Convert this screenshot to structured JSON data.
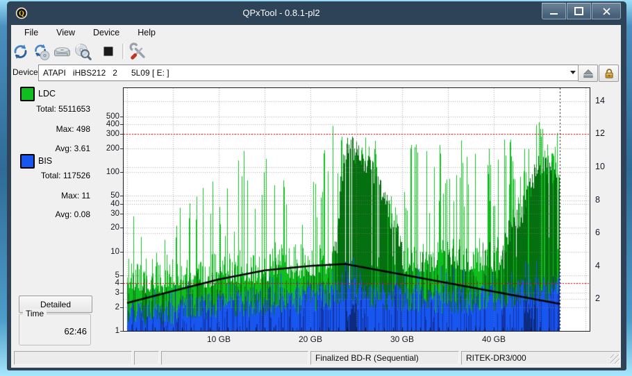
{
  "window": {
    "title": "QPxTool - 0.8.1-pl2",
    "controls": {
      "minimize": "minimize",
      "maximize": "maximize",
      "close": "✕"
    }
  },
  "menu": {
    "items": [
      "File",
      "View",
      "Device",
      "Help"
    ]
  },
  "toolbar": {
    "icons": [
      "refresh",
      "rescan-disc",
      "drive",
      "scan-disc",
      "stop",
      "tools"
    ]
  },
  "device_bar": {
    "label": "Device:",
    "value": "ATAPI   iHBS212   2      5L09 [ E: ]"
  },
  "legend": {
    "ldc": {
      "name": "LDC",
      "color": "#0fbe1f",
      "stats": [
        {
          "label": "Total:",
          "value": "5511653"
        },
        {
          "label": "Max:",
          "value": "498"
        },
        {
          "label": "Avg:",
          "value": "3.61"
        }
      ]
    },
    "bis": {
      "name": "BIS",
      "color": "#1757f0",
      "stats": [
        {
          "label": "Total:",
          "value": "117526"
        },
        {
          "label": "Max:",
          "value": "11"
        },
        {
          "label": "Avg:",
          "value": "0.08"
        }
      ]
    }
  },
  "detailed_button": "Detailed",
  "time_box": {
    "title": "Time",
    "value": "62:46"
  },
  "status_bar": {
    "panels": [
      "",
      "",
      "",
      "Finalized BD-R (Sequential)",
      "RITEK-DR3/000"
    ]
  },
  "chart_data": {
    "type": "bar",
    "x_axis": {
      "unit": "GB",
      "ticks": [
        10,
        20,
        30,
        40
      ],
      "grid_step_gb": 5,
      "minor_tick_gb": 1,
      "range": [
        0,
        50.5
      ],
      "data_end": 47.2
    },
    "y_axis_left": {
      "scale": "log",
      "range": [
        1,
        1150
      ],
      "ticks": [
        1,
        2,
        3,
        4,
        5,
        10,
        20,
        30,
        40,
        50,
        100,
        200,
        300,
        400,
        500
      ],
      "thresholds": [
        300,
        4
      ],
      "threshold_color": "#d40000"
    },
    "y_axis_right": {
      "scale": "linear",
      "range": [
        0,
        14.8
      ],
      "ticks": [
        2,
        4,
        6,
        8,
        10,
        12,
        14
      ],
      "grid_ticks": [
        14,
        10,
        8,
        6,
        2
      ]
    },
    "series": [
      {
        "name": "LDC",
        "color": "#0fbe1f",
        "dark_color": "#05700f",
        "total": 5511653,
        "max": 498,
        "avg": 3.61,
        "typical": [
          6,
          6,
          6,
          6,
          6,
          7,
          7,
          7,
          7,
          7,
          8,
          8,
          8,
          8,
          8,
          8,
          9,
          9,
          9,
          9,
          9,
          10,
          10,
          14,
          16,
          14,
          13,
          12,
          12,
          12,
          11,
          11,
          11,
          11,
          11,
          11,
          11,
          11,
          11,
          11,
          11,
          12,
          14,
          16,
          20,
          22,
          22,
          20
        ],
        "peak": [
          95,
          60,
          55,
          65,
          55,
          75,
          60,
          85,
          250,
          130,
          110,
          85,
          130,
          240,
          110,
          160,
          110,
          310,
          160,
          130,
          210,
          160,
          300,
          500,
          450,
          400,
          320,
          260,
          230,
          190,
          160,
          230,
          310,
          190,
          260,
          170,
          310,
          210,
          260,
          310,
          240,
          310,
          260,
          320,
          420,
          500,
          460,
          400
        ],
        "dark": [
          4,
          4,
          4,
          4,
          4,
          4,
          4,
          4,
          5,
          5,
          5,
          5,
          5,
          5,
          5,
          5,
          6,
          6,
          6,
          6,
          6,
          7,
          8,
          20,
          280,
          240,
          170,
          120,
          60,
          30,
          14,
          12,
          12,
          10,
          10,
          10,
          10,
          10,
          10,
          10,
          12,
          14,
          30,
          40,
          90,
          160,
          140,
          100
        ],
        "spike_density": [
          0.12,
          0.12,
          0.12,
          0.12,
          0.12,
          0.12,
          0.12,
          0.12,
          0.15,
          0.15,
          0.15,
          0.15,
          0.15,
          0.15,
          0.15,
          0.15,
          0.15,
          0.15,
          0.15,
          0.15,
          0.18,
          0.18,
          0.2,
          0.3,
          0.3,
          0.3,
          0.3,
          0.28,
          0.26,
          0.24,
          0.25,
          0.25,
          0.25,
          0.25,
          0.25,
          0.25,
          0.25,
          0.25,
          0.25,
          0.25,
          0.3,
          0.35,
          0.4,
          0.45,
          0.5,
          0.55,
          0.55,
          0.5
        ]
      },
      {
        "name": "BIS",
        "color": "#1757f0",
        "dark_color": "#1334a8",
        "total": 117526,
        "max": 11,
        "avg": 0.08,
        "typical": [
          1.9,
          2,
          1.9,
          2.1,
          2,
          2.2,
          2.4,
          2.4,
          2.5,
          2.5,
          2.6,
          2.6,
          2.7,
          2.7,
          2.8,
          2.8,
          2.8,
          2.9,
          2.9,
          3,
          3.2,
          3.3,
          3.4,
          3.6,
          4.5,
          3.8,
          3.5,
          3.4,
          3.3,
          3.3,
          3.2,
          3.2,
          3.1,
          3.1,
          3,
          3,
          3,
          3,
          3.1,
          3.1,
          3.2,
          3.3,
          3.4,
          3.6,
          3.8,
          4,
          4,
          3.8
        ],
        "peak": [
          3,
          3.5,
          3,
          4,
          3.5,
          4,
          4,
          4.5,
          4,
          5,
          4.5,
          5,
          5,
          5,
          5.5,
          5,
          6,
          5.5,
          6,
          6,
          6,
          6.5,
          7,
          9,
          10,
          8,
          7,
          7,
          6.5,
          6,
          6,
          6,
          7,
          6,
          7,
          6,
          7,
          6.5,
          7,
          7,
          7,
          8,
          8,
          9,
          10,
          11,
          10,
          9
        ]
      }
    ],
    "speed_line": {
      "color": "#000000",
      "axis": "right",
      "points": [
        [
          0,
          1.78
        ],
        [
          5,
          2.5
        ],
        [
          10,
          3.2
        ],
        [
          15,
          3.75
        ],
        [
          20,
          4.02
        ],
        [
          23.8,
          4.14
        ],
        [
          47.2,
          1.72
        ]
      ]
    },
    "gap_region": {
      "from": 23.6,
      "to": 24.35
    },
    "blue_boost_region": {
      "from": 23.4,
      "to": 25.3
    },
    "navy_blocks": [
      {
        "from": 23.8,
        "to": 25.2,
        "h": 2.4
      },
      {
        "from": 43.2,
        "to": 44.7,
        "h": 2.2
      }
    ],
    "noise_seed": 20
  }
}
